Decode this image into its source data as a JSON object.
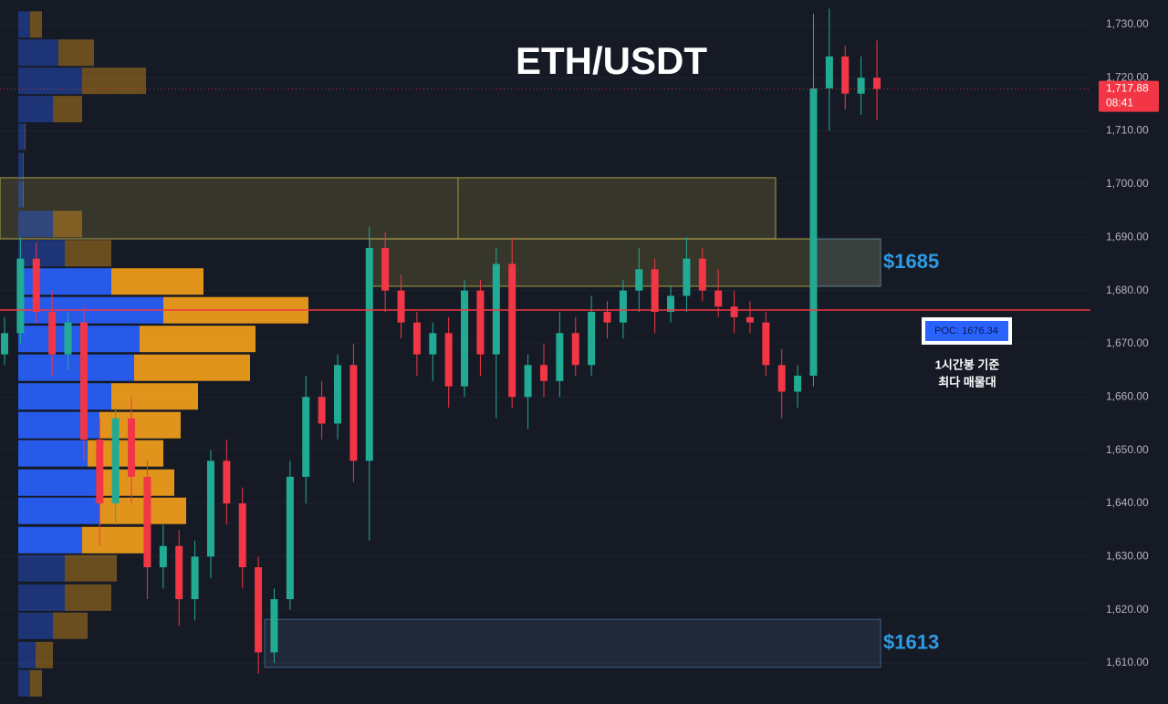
{
  "chart_data": {
    "type": "candlestick",
    "title": "ETH/USDT",
    "ylim": [
      1602.3,
      1734.6
    ],
    "yticks": [
      {
        "value": 1610,
        "label": "1,610.00"
      },
      {
        "value": 1620,
        "label": "1,620.00"
      },
      {
        "value": 1630,
        "label": "1,630.00"
      },
      {
        "value": 1640,
        "label": "1,640.00"
      },
      {
        "value": 1650,
        "label": "1,650.00"
      },
      {
        "value": 1660,
        "label": "1,660.00"
      },
      {
        "value": 1670,
        "label": "1,670.00"
      },
      {
        "value": 1680,
        "label": "1,680.00"
      },
      {
        "value": 1690,
        "label": "1,690.00"
      },
      {
        "value": 1700,
        "label": "1,700.00"
      },
      {
        "value": 1710,
        "label": "1,710.00"
      },
      {
        "value": 1720,
        "label": "1,720.00"
      },
      {
        "value": 1730,
        "label": "1,730.00"
      }
    ],
    "open": [
      1668,
      1672,
      1686,
      1676,
      1668,
      1674,
      1652,
      1640,
      1656,
      1645,
      1628,
      1632,
      1622,
      1630,
      1648,
      1640,
      1628,
      1612,
      1622,
      1645,
      1660,
      1655,
      1666,
      1648,
      1688,
      1680,
      1674,
      1668,
      1672,
      1662,
      1680,
      1668,
      1685,
      1660,
      1666,
      1663,
      1672,
      1666,
      1676,
      1674,
      1680,
      1684,
      1676,
      1679,
      1686,
      1680,
      1677,
      1675,
      1674,
      1666,
      1661,
      1664,
      1718,
      1724,
      1717,
      1720
    ],
    "high": [
      1675,
      1690,
      1689,
      1680,
      1676,
      1677,
      1656,
      1658,
      1660,
      1648,
      1636,
      1635,
      1633,
      1650,
      1652,
      1643,
      1630,
      1624,
      1648,
      1664,
      1663,
      1668,
      1670,
      1692,
      1691,
      1683,
      1676,
      1674,
      1675,
      1682,
      1682,
      1688,
      1690,
      1668,
      1670,
      1676,
      1675,
      1679,
      1678,
      1682,
      1688,
      1686,
      1681,
      1690,
      1688,
      1684,
      1680,
      1678,
      1676,
      1669,
      1666,
      1732,
      1733,
      1726,
      1724,
      1727
    ],
    "low": [
      1666,
      1670,
      1674,
      1664,
      1665,
      1648,
      1632,
      1636,
      1640,
      1622,
      1624,
      1617,
      1618,
      1626,
      1636,
      1624,
      1608,
      1610,
      1620,
      1640,
      1652,
      1652,
      1644,
      1633,
      1676,
      1671,
      1664,
      1663,
      1658,
      1660,
      1664,
      1656,
      1658,
      1654,
      1660,
      1660,
      1664,
      1664,
      1671,
      1671,
      1676,
      1672,
      1674,
      1676,
      1678,
      1675,
      1672,
      1672,
      1664,
      1656,
      1658,
      1662,
      1710,
      1714,
      1713,
      1712
    ],
    "close": [
      1672,
      1686,
      1676,
      1668,
      1674,
      1652,
      1640,
      1656,
      1645,
      1628,
      1632,
      1622,
      1630,
      1648,
      1640,
      1628,
      1612,
      1622,
      1645,
      1660,
      1655,
      1666,
      1648,
      1688,
      1680,
      1674,
      1668,
      1672,
      1662,
      1680,
      1668,
      1685,
      1660,
      1666,
      1663,
      1672,
      1666,
      1676,
      1674,
      1680,
      1684,
      1676,
      1679,
      1686,
      1680,
      1677,
      1675,
      1674,
      1666,
      1661,
      1664,
      1718,
      1724,
      1717,
      1720,
      1717.88
    ],
    "up_color": "#22ab94",
    "down_color": "#f23645",
    "last_price": {
      "value": 1717.88,
      "label": "1,717.88",
      "timer": "08:41",
      "color": "#f23645"
    },
    "volume_profile": {
      "prices": [
        1730,
        1724.7,
        1719.4,
        1714.1,
        1708.9,
        1703.4,
        1698.1,
        1692.5,
        1687.0,
        1681.7,
        1676.3,
        1670.9,
        1665.5,
        1660.1,
        1654.7,
        1649.4,
        1643.9,
        1638.6,
        1633.1,
        1627.8,
        1622.3,
        1617.0,
        1611.5,
        1606.2
      ],
      "buy": [
        13,
        44,
        70,
        38,
        7,
        5,
        5,
        38,
        51,
        102,
        159,
        133,
        127,
        102,
        89,
        76,
        89,
        89,
        70,
        51,
        51,
        38,
        19,
        13
      ],
      "sell": [
        13,
        39,
        70,
        32,
        1,
        1,
        1,
        32,
        51,
        101,
        159,
        127,
        127,
        95,
        89,
        83,
        82,
        95,
        69,
        57,
        51,
        38,
        19,
        13
      ],
      "buy_color": "#2962ff",
      "sell_color": "#f7a21b",
      "value_area": [
        1630.4,
        1684.4
      ]
    },
    "poc": {
      "value": 1676.34,
      "label": "POC: 1676.34",
      "color": "#f23645"
    },
    "zones": [
      {
        "range": [
          1689.7,
          1701.2
        ],
        "color": "#c9b84a"
      },
      {
        "range": [
          1680.8,
          1689.7
        ],
        "color": "#c9b84a"
      },
      {
        "range": [
          1680.8,
          1689.7
        ],
        "color": "#4a6f98",
        "label": "$1685"
      },
      {
        "range": [
          1609.2,
          1618.2
        ],
        "color": "#4a6f98",
        "label": "$1613"
      }
    ],
    "annotation": [
      "1시간봉 기준",
      "최다 매물대"
    ]
  }
}
